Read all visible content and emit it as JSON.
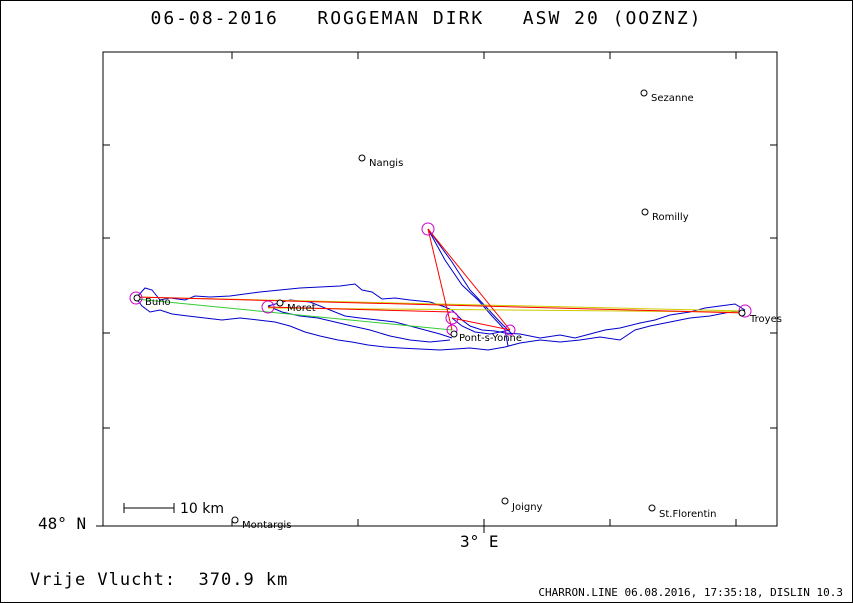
{
  "header": {
    "title": "06-08-2016   ROGGEMAN DIRK   ASW 20 (OOZNZ)"
  },
  "axes": {
    "lat_label": "48° N",
    "lon_label": "3° E"
  },
  "scale_bar": {
    "label": "10 km"
  },
  "towns": [
    {
      "id": "sezanne",
      "name": "Sezanne"
    },
    {
      "id": "nangis",
      "name": "Nangis"
    },
    {
      "id": "romilly",
      "name": "Romilly"
    },
    {
      "id": "buno",
      "name": "Buno"
    },
    {
      "id": "moret",
      "name": "Moret"
    },
    {
      "id": "troyes",
      "name": "Troyes"
    },
    {
      "id": "pont-s-yonne",
      "name": "Pont-s-Yonne"
    },
    {
      "id": "joigny",
      "name": "Joigny"
    },
    {
      "id": "st-florentin",
      "name": "St.Florentin"
    },
    {
      "id": "montargis",
      "name": "Montargis"
    }
  ],
  "summary": {
    "distance_text": "Vrije Vlucht:  370.9 km"
  },
  "footer": {
    "text": "CHARRON.LINE 06.08.2016, 17:35:18, DISLIN 10.3"
  },
  "colors": {
    "track": "#0000cc",
    "task_line": "#ff0000",
    "leg_line_1": "#cccc00",
    "leg_line_2": "#33cc33",
    "turnpoint": "#cc00cc"
  }
}
